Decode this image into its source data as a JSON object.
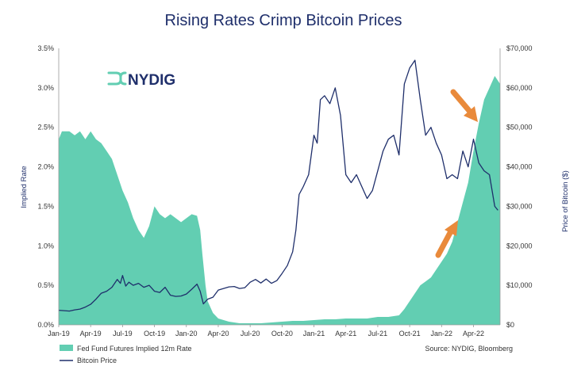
{
  "chart_data": {
    "type": "area+line",
    "title": "Rising Rates Crimp Bitcoin Prices",
    "y_left_label": "Implied Rate",
    "y_right_label": "Price of Bitcoin ($)",
    "y_left_ticks": [
      "0.0%",
      "0.5%",
      "1.0%",
      "1.5%",
      "2.0%",
      "2.5%",
      "3.0%",
      "3.5%"
    ],
    "y_left_range": [
      0,
      3.5
    ],
    "y_right_ticks": [
      "$0",
      "$10,000",
      "$20,000",
      "$30,000",
      "$40,000",
      "$50,000",
      "$60,000",
      "$70,000"
    ],
    "y_right_range": [
      0,
      70000
    ],
    "x_ticks": [
      "Jan-19",
      "Apr-19",
      "Jul-19",
      "Oct-19",
      "Jan-20",
      "Apr-20",
      "Jul-20",
      "Oct-20",
      "Jan-21",
      "Apr-21",
      "Jul-21",
      "Oct-21",
      "Jan-22",
      "Apr-22"
    ],
    "x_range_months": [
      0,
      41.5
    ],
    "series": [
      {
        "name": "Fed Fund Futures Implied 12m Rate",
        "kind": "area",
        "color": "#62ceb2",
        "x": [
          0,
          0.3,
          1.0,
          1.5,
          2.0,
          2.5,
          3.0,
          3.5,
          4.0,
          4.5,
          5.0,
          5.5,
          6.0,
          6.5,
          7.0,
          7.5,
          8.0,
          8.5,
          9.0,
          9.5,
          10.0,
          10.5,
          11.0,
          11.5,
          12.0,
          12.5,
          13.0,
          13.3,
          13.5,
          13.8,
          14.0,
          14.5,
          15.0,
          16.0,
          17.0,
          18.0,
          19.0,
          20.0,
          21.0,
          22.0,
          23.0,
          24.0,
          25.0,
          26.0,
          27.0,
          28.0,
          29.0,
          30.0,
          31.0,
          32.0,
          32.5,
          33.0,
          33.5,
          34.0,
          34.5,
          35.0,
          35.5,
          36.0,
          36.5,
          37.0,
          37.5,
          38.0,
          38.5,
          39.0,
          39.5,
          40.0,
          40.5,
          41.0,
          41.5
        ],
        "y": [
          2.35,
          2.45,
          2.45,
          2.4,
          2.45,
          2.35,
          2.45,
          2.35,
          2.3,
          2.2,
          2.1,
          1.9,
          1.7,
          1.55,
          1.35,
          1.2,
          1.1,
          1.25,
          1.5,
          1.4,
          1.35,
          1.4,
          1.35,
          1.3,
          1.35,
          1.4,
          1.38,
          1.2,
          0.9,
          0.5,
          0.3,
          0.15,
          0.08,
          0.04,
          0.02,
          0.02,
          0.02,
          0.03,
          0.04,
          0.05,
          0.05,
          0.06,
          0.07,
          0.07,
          0.08,
          0.08,
          0.08,
          0.1,
          0.1,
          0.12,
          0.2,
          0.3,
          0.4,
          0.5,
          0.55,
          0.6,
          0.7,
          0.8,
          0.9,
          1.05,
          1.3,
          1.55,
          1.8,
          2.2,
          2.55,
          2.85,
          3.0,
          3.15,
          3.05
        ]
      },
      {
        "name": "Bitcoin Price",
        "kind": "line",
        "color": "#1f2f6b",
        "x": [
          0,
          0.5,
          1.0,
          1.5,
          2.0,
          2.5,
          3.0,
          3.5,
          4.0,
          4.5,
          5.0,
          5.5,
          5.8,
          6.0,
          6.3,
          6.6,
          7.0,
          7.5,
          8.0,
          8.5,
          9.0,
          9.5,
          10.0,
          10.5,
          11.0,
          11.5,
          12.0,
          12.5,
          13.0,
          13.3,
          13.6,
          14.0,
          14.5,
          15.0,
          15.5,
          16.0,
          16.5,
          17.0,
          17.5,
          18.0,
          18.5,
          19.0,
          19.5,
          20.0,
          20.5,
          21.0,
          21.5,
          22.0,
          22.3,
          22.6,
          23.0,
          23.5,
          24.0,
          24.3,
          24.6,
          25.0,
          25.5,
          26.0,
          26.5,
          27.0,
          27.5,
          28.0,
          28.5,
          29.0,
          29.5,
          30.0,
          30.5,
          31.0,
          31.5,
          32.0,
          32.5,
          33.0,
          33.5,
          34.0,
          34.5,
          35.0,
          35.5,
          36.0,
          36.5,
          37.0,
          37.5,
          38.0,
          38.5,
          39.0,
          39.5,
          40.0,
          40.5,
          41.0,
          41.3
        ],
        "y": [
          3700,
          3600,
          3500,
          3800,
          4000,
          4500,
          5200,
          6500,
          8000,
          8500,
          9500,
          11500,
          10500,
          12500,
          9800,
          10800,
          10000,
          10500,
          9500,
          10000,
          8500,
          8200,
          9500,
          7500,
          7200,
          7300,
          7800,
          9000,
          10300,
          8500,
          5300,
          6500,
          7000,
          8800,
          9200,
          9600,
          9700,
          9200,
          9400,
          10800,
          11500,
          10600,
          11600,
          10500,
          11200,
          13000,
          15000,
          18500,
          24000,
          33000,
          35000,
          38000,
          48000,
          46000,
          57000,
          58000,
          56000,
          60000,
          53000,
          38000,
          36000,
          38000,
          35000,
          32000,
          34000,
          39000,
          44000,
          47000,
          48000,
          43000,
          61000,
          65000,
          67000,
          57000,
          48000,
          50000,
          46000,
          43000,
          37000,
          38000,
          37000,
          44000,
          40000,
          47000,
          41000,
          39000,
          38000,
          30000,
          29000
        ]
      }
    ],
    "legend": [
      "Fed Fund Futures Implied 12m Rate",
      "Bitcoin Price"
    ],
    "legend_position": "bottom-left",
    "source": "Source: NYDIG, Bloomberg",
    "arrows_color": "#e98a3b",
    "grid": false
  },
  "logo": {
    "text": "NYDIG",
    "color": "#62ceb2"
  }
}
